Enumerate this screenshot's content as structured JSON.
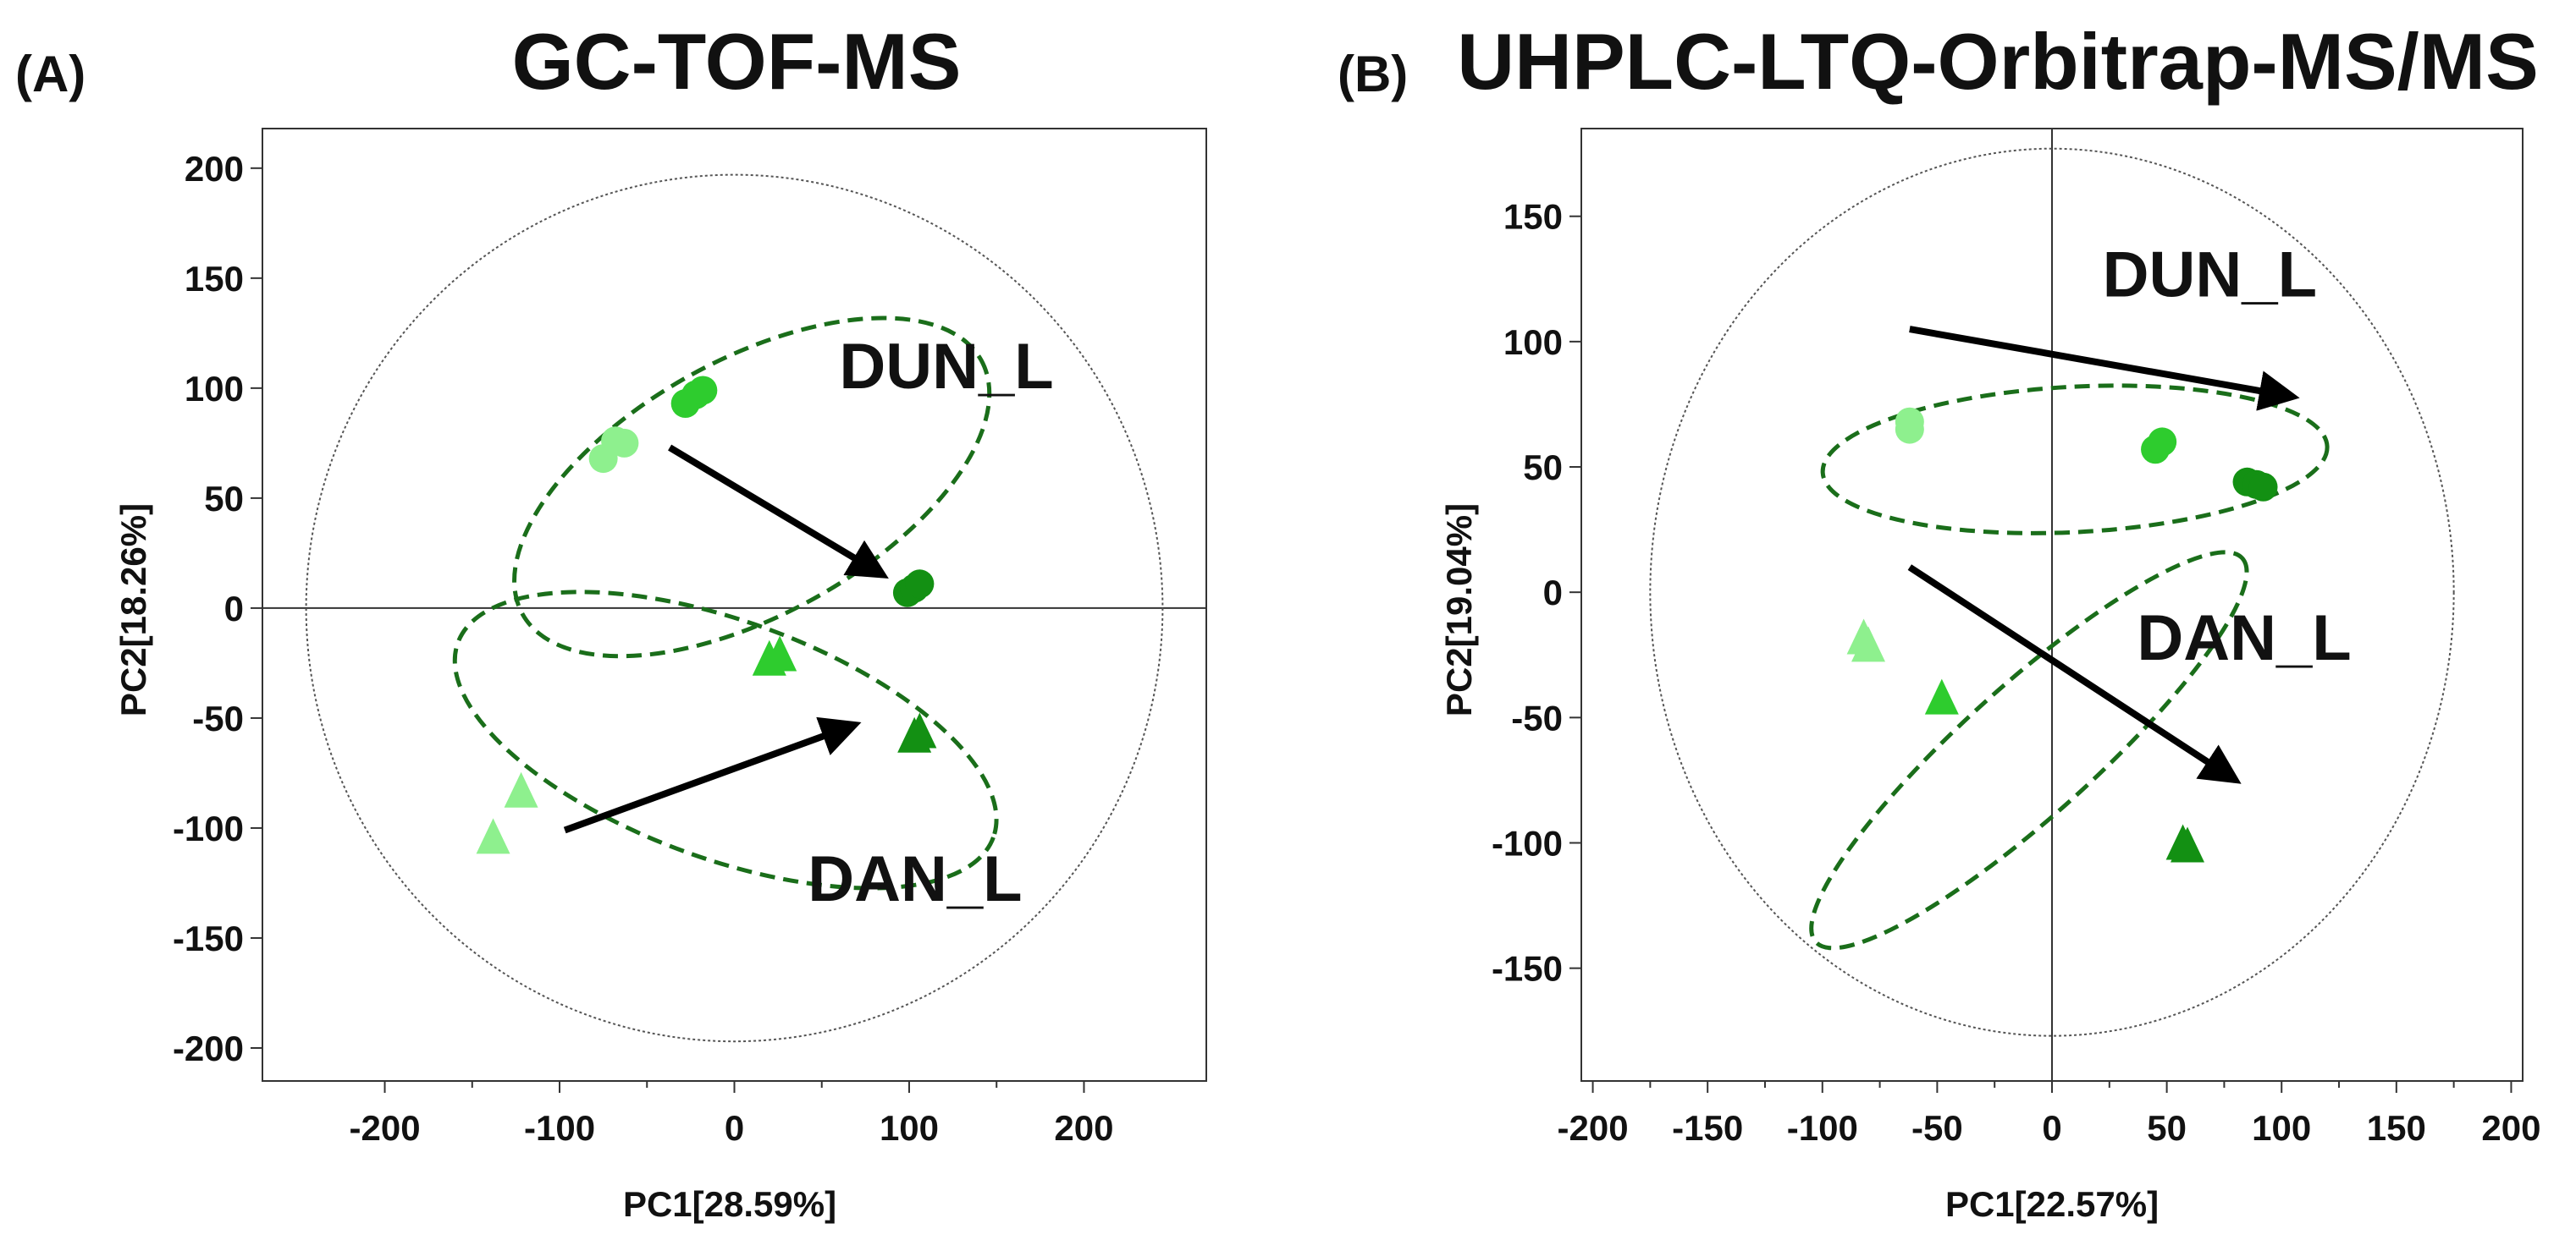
{
  "colors": {
    "light": "#8ef08e",
    "mid": "#2ecc2e",
    "dark": "#139013",
    "ellipse": "#1a6e1a",
    "arrow": "#000000"
  },
  "chart_data": [
    {
      "type": "scatter",
      "panel_label": "(A)",
      "title": "GC-TOF-MS",
      "xlabel": "PC1[28.59%]",
      "ylabel": "PC2[18.26%]",
      "xlim": [
        -270,
        270
      ],
      "ylim": [
        -215,
        218
      ],
      "xticks": [
        -200,
        -100,
        0,
        100,
        200
      ],
      "yticks": [
        -200,
        -150,
        -100,
        -50,
        0,
        50,
        100,
        150,
        200
      ],
      "hotelling_ellipse": {
        "rx": 245,
        "ry": 197
      },
      "series": [
        {
          "name": "DUN_L",
          "marker": "circle",
          "points": [
            {
              "x": -75,
              "y": 68,
              "shade": "light"
            },
            {
              "x": -68,
              "y": 76,
              "shade": "light"
            },
            {
              "x": -63,
              "y": 75,
              "shade": "light"
            },
            {
              "x": -28,
              "y": 93,
              "shade": "mid"
            },
            {
              "x": -22,
              "y": 97,
              "shade": "mid"
            },
            {
              "x": -18,
              "y": 99,
              "shade": "mid"
            },
            {
              "x": 99,
              "y": 7,
              "shade": "dark"
            },
            {
              "x": 103,
              "y": 9,
              "shade": "dark"
            },
            {
              "x": 106,
              "y": 11,
              "shade": "dark"
            }
          ]
        },
        {
          "name": "DAN_L",
          "marker": "triangle",
          "points": [
            {
              "x": -138,
              "y": -104,
              "shade": "light"
            },
            {
              "x": -122,
              "y": -83,
              "shade": "light"
            },
            {
              "x": 20,
              "y": -23,
              "shade": "mid"
            },
            {
              "x": 26,
              "y": -21,
              "shade": "mid"
            },
            {
              "x": 103,
              "y": -58,
              "shade": "dark"
            },
            {
              "x": 106,
              "y": -56,
              "shade": "dark"
            }
          ]
        }
      ],
      "group_ellipses": [
        {
          "group": "DUN_L",
          "cx": 10,
          "cy": 55,
          "rx": 150,
          "ry": 58,
          "angle": -29
        },
        {
          "group": "DAN_L",
          "cx": -5,
          "cy": -60,
          "rx": 163,
          "ry": 54,
          "angle": 20
        }
      ],
      "arrows": [
        {
          "from": [
            -37,
            73
          ],
          "to": [
            85,
            15
          ]
        },
        {
          "from": [
            -97,
            -101
          ],
          "to": [
            69,
            -53
          ]
        }
      ],
      "annotations": [
        {
          "text": "DUN_L",
          "x": 60,
          "y": 100
        },
        {
          "text": "DAN_L",
          "x": 42,
          "y": -133
        }
      ]
    },
    {
      "type": "scatter",
      "panel_label": "(B)",
      "title": "UHPLC-LTQ-Orbitrap-MS/MS",
      "xlabel": "PC1[22.57%]",
      "ylabel": "PC2[19.04%]",
      "xlim": [
        -205,
        205
      ],
      "ylim": [
        -195,
        185
      ],
      "xticks": [
        -200,
        -150,
        -100,
        -50,
        0,
        50,
        100,
        150,
        200
      ],
      "yticks": [
        -150,
        -100,
        -50,
        0,
        50,
        100,
        150
      ],
      "hotelling_ellipse": {
        "rx": 175,
        "ry": 177
      },
      "series": [
        {
          "name": "DUN_L",
          "marker": "circle",
          "points": [
            {
              "x": -62,
              "y": 65,
              "shade": "light"
            },
            {
              "x": -62,
              "y": 68,
              "shade": "light"
            },
            {
              "x": 45,
              "y": 57,
              "shade": "mid"
            },
            {
              "x": 48,
              "y": 60,
              "shade": "mid"
            },
            {
              "x": 85,
              "y": 44,
              "shade": "dark"
            },
            {
              "x": 89,
              "y": 43,
              "shade": "dark"
            },
            {
              "x": 92,
              "y": 42,
              "shade": "dark"
            }
          ]
        },
        {
          "name": "DAN_L",
          "marker": "triangle",
          "points": [
            {
              "x": -82,
              "y": -18,
              "shade": "light"
            },
            {
              "x": -80,
              "y": -21,
              "shade": "light"
            },
            {
              "x": -48,
              "y": -42,
              "shade": "mid"
            },
            {
              "x": 57,
              "y": -100,
              "shade": "dark"
            },
            {
              "x": 59,
              "y": -101,
              "shade": "dark"
            }
          ]
        }
      ],
      "group_ellipses": [
        {
          "group": "DUN_L",
          "cx": 10,
          "cy": 53,
          "rx": 110,
          "ry": 29,
          "angle": -3
        },
        {
          "group": "DAN_L",
          "cx": -10,
          "cy": -63,
          "rx": 125,
          "ry": 26,
          "angle": -42
        }
      ],
      "arrows": [
        {
          "from": [
            -62,
            105
          ],
          "to": [
            105,
            78
          ]
        },
        {
          "from": [
            -62,
            10
          ],
          "to": [
            80,
            -75
          ]
        }
      ],
      "annotations": [
        {
          "text": "DUN_L",
          "x": 22,
          "y": 118
        },
        {
          "text": "DAN_L",
          "x": 37,
          "y": -27
        }
      ]
    }
  ]
}
